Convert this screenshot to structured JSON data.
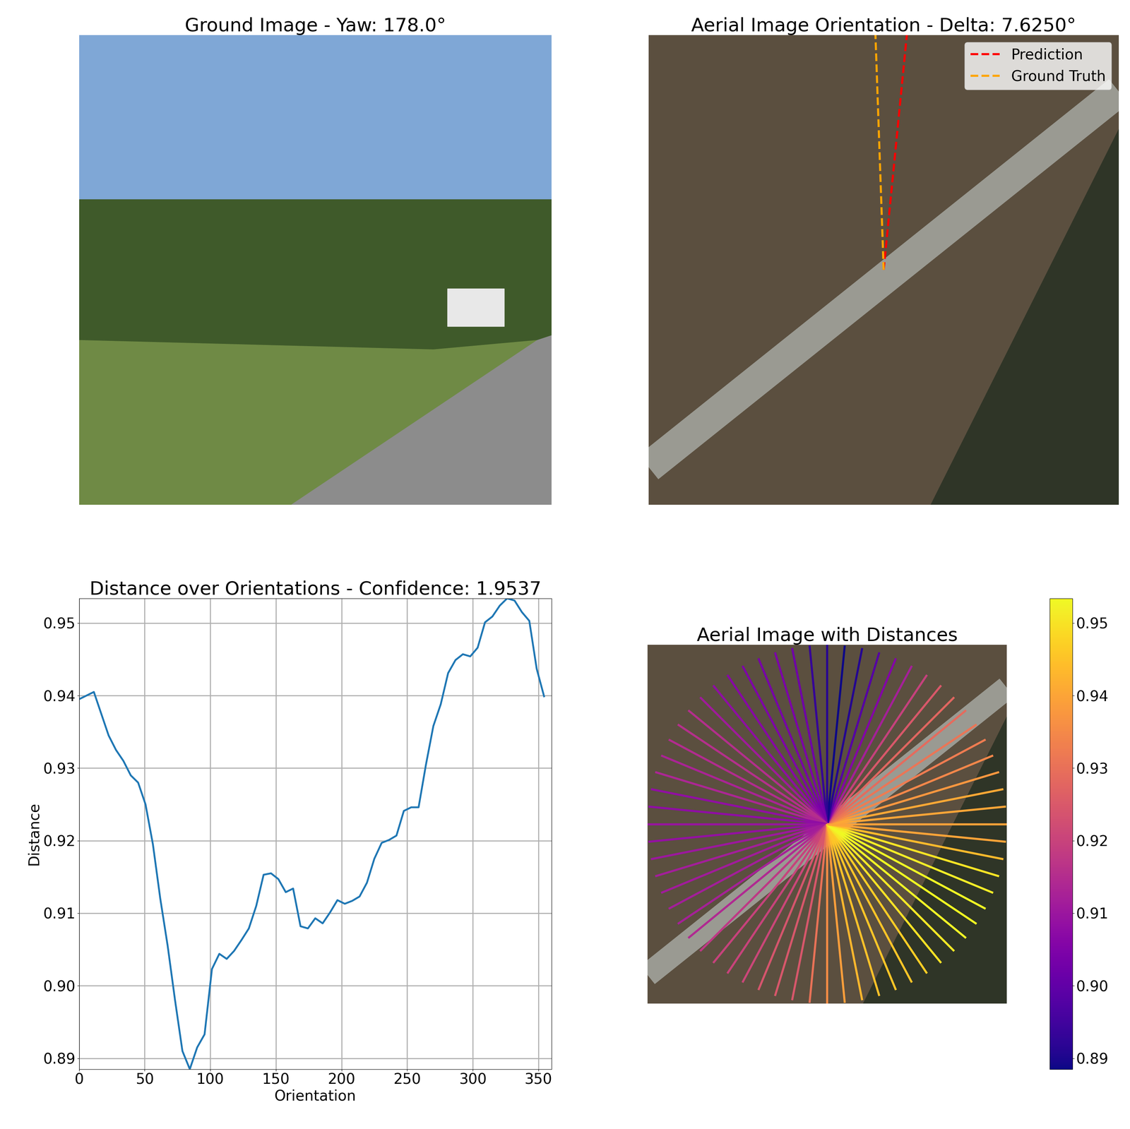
{
  "chart_data": [
    {
      "type": "image",
      "title": "Ground Image - Yaw: 178.0°"
    },
    {
      "type": "orientation",
      "title": "Aerial Image Orientation - Delta: 7.6250°",
      "delta": 7.625,
      "legend": "upper right",
      "series": [
        {
          "name": "Prediction",
          "color": "#ff0000",
          "line_style": "dashed"
        },
        {
          "name": "Ground Truth",
          "color": "#ffa500",
          "line_style": "dashed"
        }
      ]
    },
    {
      "type": "line",
      "title": "Distance over Orientations - Confidence: 1.9537",
      "x_label": "Orientation",
      "y_label": "Distance",
      "color": "#1f77b4",
      "grid": true,
      "x": [
        0,
        5.625,
        11.25,
        16.875,
        22.5,
        28.125,
        33.75,
        39.375,
        45,
        50.625,
        56.25,
        61.875,
        67.5,
        73.125,
        78.75,
        84.375,
        90,
        95.625,
        101.25,
        106.875,
        112.5,
        118.125,
        123.75,
        129.375,
        135,
        140.625,
        146.25,
        151.875,
        157.5,
        163.125,
        168.75,
        174.375,
        180,
        185.625,
        191.25,
        196.875,
        202.5,
        208.125,
        213.75,
        219.375,
        225,
        230.625,
        236.25,
        241.875,
        247.5,
        253.125,
        258.75,
        264.375,
        270,
        275.625,
        281.25,
        286.875,
        292.5,
        298.125,
        303.75,
        309.375,
        315,
        320.625,
        326.25,
        331.875,
        337.5,
        343.125,
        348.75,
        354.375
      ],
      "values": [
        0.9395,
        0.94,
        0.9405,
        0.9375,
        0.9345,
        0.9325,
        0.931,
        0.929,
        0.928,
        0.925,
        0.9195,
        0.912,
        0.9055,
        0.898,
        0.891,
        0.8885,
        0.8915,
        0.8933,
        0.9023,
        0.9044,
        0.9037,
        0.9048,
        0.9063,
        0.9079,
        0.911,
        0.9153,
        0.9155,
        0.9147,
        0.9129,
        0.9134,
        0.9082,
        0.9079,
        0.9093,
        0.9086,
        0.9101,
        0.9118,
        0.9113,
        0.9117,
        0.9123,
        0.9142,
        0.9175,
        0.9197,
        0.9201,
        0.9207,
        0.9241,
        0.9246,
        0.9246,
        0.9305,
        0.9358,
        0.9388,
        0.9431,
        0.9449,
        0.9457,
        0.9454,
        0.9466,
        0.9501,
        0.9509,
        0.9524,
        0.9534,
        0.9531,
        0.9515,
        0.9503,
        0.9437,
        0.9399
      ],
      "xlim": [
        0,
        360
      ],
      "xticks": [
        0,
        50,
        100,
        150,
        200,
        250,
        300,
        350
      ],
      "ylim": [
        0.8885,
        0.9534
      ],
      "yticks": [
        0.89,
        {
          "value": 0.9,
          "label": "0.90"
        },
        0.91,
        0.92,
        0.93,
        0.94,
        0.95
      ]
    },
    {
      "type": "radial",
      "title": "Aerial Image with Distances",
      "colorbar": {
        "range": [
          0.8885,
          0.9534
        ],
        "ticks": [
          0.89,
          {
            "value": 0.9,
            "label": "0.90"
          },
          0.91,
          0.92,
          0.93,
          0.94,
          0.95
        ]
      }
    }
  ]
}
